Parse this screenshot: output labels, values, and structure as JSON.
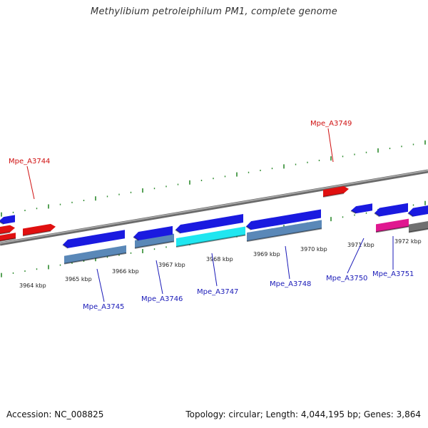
{
  "title": "Methylibium petroleiphilum PM1, complete genome",
  "footer": {
    "accession": "Accession: NC_008825",
    "summary": "Topology: circular; Length: 4,044,195 bp; Genes: 3,864"
  },
  "colors": {
    "backbone": "#8a8a8a",
    "tick": "#2e8b2e",
    "forward_gene": "#e01010",
    "reverse_gene": "#1a1ae0",
    "feature_blue": "#5a88b8",
    "feature_cyan": "#20e6f0",
    "feature_magenta": "#e01890",
    "feature_gray": "#707070",
    "label_forward": "#d01010",
    "label_reverse": "#1a1ab8"
  },
  "axis": {
    "unit": "kbp",
    "tick_labels": [
      "3964 kbp",
      "3965 kbp",
      "3966 kbp",
      "3967 kbp",
      "3968 kbp",
      "3969 kbp",
      "3970 kbp",
      "3971 kbp",
      "3972 kbp"
    ]
  },
  "genes": [
    {
      "label": "Mpe_A3744",
      "strand": "forward"
    },
    {
      "label": "Mpe_A3745",
      "strand": "reverse"
    },
    {
      "label": "Mpe_A3746",
      "strand": "reverse"
    },
    {
      "label": "Mpe_A3747",
      "strand": "reverse"
    },
    {
      "label": "Mpe_A3748",
      "strand": "reverse"
    },
    {
      "label": "Mpe_A3749",
      "strand": "forward"
    },
    {
      "label": "Mpe_A3750",
      "strand": "reverse"
    },
    {
      "label": "Mpe_A3751",
      "strand": "reverse"
    }
  ]
}
